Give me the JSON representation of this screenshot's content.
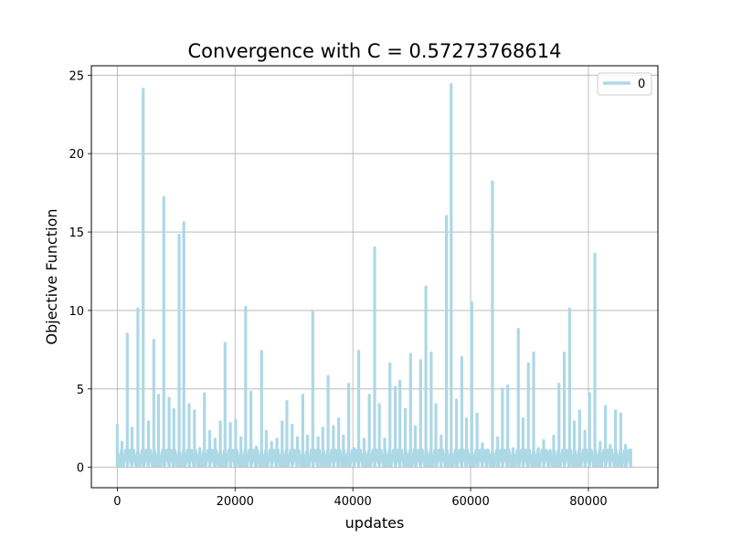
{
  "chart_data": {
    "type": "line",
    "title": "Convergence with C = 0.57273768614",
    "xlabel": "updates",
    "ylabel": "Objective Function",
    "xlim": [
      -4400,
      91800
    ],
    "ylim": [
      -1.3,
      25.6
    ],
    "xticks": [
      0,
      20000,
      40000,
      60000,
      80000
    ],
    "xtick_labels": [
      "0",
      "20000",
      "40000",
      "60000",
      "80000"
    ],
    "yticks": [
      0,
      5,
      10,
      15,
      20,
      25
    ],
    "ytick_labels": [
      "0",
      "5",
      "10",
      "15",
      "20",
      "25"
    ],
    "grid": true,
    "legend_position": "top-right",
    "baseline_band": [
      0.1,
      1.1
    ],
    "x_end": 87300,
    "series": [
      {
        "name": "0",
        "color": "#add8e6",
        "spikes": [
          [
            0,
            2.7
          ],
          [
            800,
            1.6
          ],
          [
            1700,
            8.5
          ],
          [
            2500,
            2.5
          ],
          [
            3500,
            10.1
          ],
          [
            4400,
            24.1
          ],
          [
            5300,
            2.9
          ],
          [
            6200,
            8.1
          ],
          [
            7000,
            4.6
          ],
          [
            7900,
            17.2
          ],
          [
            8800,
            4.4
          ],
          [
            9600,
            3.7
          ],
          [
            10500,
            14.8
          ],
          [
            11300,
            15.6
          ],
          [
            12200,
            4.0
          ],
          [
            13100,
            3.6
          ],
          [
            14000,
            1.2
          ],
          [
            14800,
            4.7
          ],
          [
            15700,
            2.3
          ],
          [
            16600,
            1.8
          ],
          [
            17500,
            2.9
          ],
          [
            18300,
            7.9
          ],
          [
            19200,
            2.8
          ],
          [
            20100,
            3.0
          ],
          [
            21000,
            1.9
          ],
          [
            21800,
            10.2
          ],
          [
            22700,
            4.8
          ],
          [
            23600,
            1.3
          ],
          [
            24500,
            7.4
          ],
          [
            25300,
            2.3
          ],
          [
            26200,
            1.6
          ],
          [
            27100,
            1.8
          ],
          [
            28000,
            2.9
          ],
          [
            28800,
            4.2
          ],
          [
            29700,
            2.7
          ],
          [
            30600,
            1.9
          ],
          [
            31500,
            4.6
          ],
          [
            32300,
            2.0
          ],
          [
            33200,
            9.9
          ],
          [
            34100,
            1.9
          ],
          [
            34900,
            2.5
          ],
          [
            35800,
            5.8
          ],
          [
            36700,
            2.6
          ],
          [
            37600,
            3.1
          ],
          [
            38400,
            2.0
          ],
          [
            39300,
            5.3
          ],
          [
            40200,
            1.2
          ],
          [
            41000,
            7.4
          ],
          [
            41900,
            1.8
          ],
          [
            42800,
            4.6
          ],
          [
            43700,
            14.0
          ],
          [
            44500,
            4.0
          ],
          [
            45400,
            1.8
          ],
          [
            46300,
            6.6
          ],
          [
            47200,
            5.1
          ],
          [
            48000,
            5.5
          ],
          [
            48900,
            3.7
          ],
          [
            49800,
            7.2
          ],
          [
            50600,
            2.6
          ],
          [
            51500,
            6.8
          ],
          [
            52400,
            11.5
          ],
          [
            53300,
            7.3
          ],
          [
            54100,
            4.0
          ],
          [
            55000,
            2.0
          ],
          [
            55900,
            16.0
          ],
          [
            56700,
            24.4
          ],
          [
            57600,
            4.3
          ],
          [
            58500,
            7.0
          ],
          [
            59300,
            3.1
          ],
          [
            60200,
            10.5
          ],
          [
            61100,
            3.4
          ],
          [
            62000,
            1.5
          ],
          [
            62800,
            1.1
          ],
          [
            63700,
            18.2
          ],
          [
            64600,
            1.9
          ],
          [
            65400,
            5.0
          ],
          [
            66300,
            5.2
          ],
          [
            67200,
            1.2
          ],
          [
            68100,
            8.8
          ],
          [
            68900,
            3.1
          ],
          [
            69800,
            6.6
          ],
          [
            70700,
            7.3
          ],
          [
            71500,
            1.2
          ],
          [
            72400,
            1.7
          ],
          [
            73300,
            1.0
          ],
          [
            74100,
            2.0
          ],
          [
            75000,
            5.3
          ],
          [
            75900,
            7.3
          ],
          [
            76800,
            10.1
          ],
          [
            77600,
            2.9
          ],
          [
            78500,
            3.6
          ],
          [
            79400,
            2.3
          ],
          [
            80200,
            4.7
          ],
          [
            81100,
            13.6
          ],
          [
            82000,
            1.6
          ],
          [
            82900,
            3.9
          ],
          [
            83700,
            1.4
          ],
          [
            84600,
            3.6
          ],
          [
            85500,
            3.4
          ],
          [
            86300,
            1.4
          ],
          [
            87200,
            1.1
          ]
        ]
      }
    ]
  }
}
